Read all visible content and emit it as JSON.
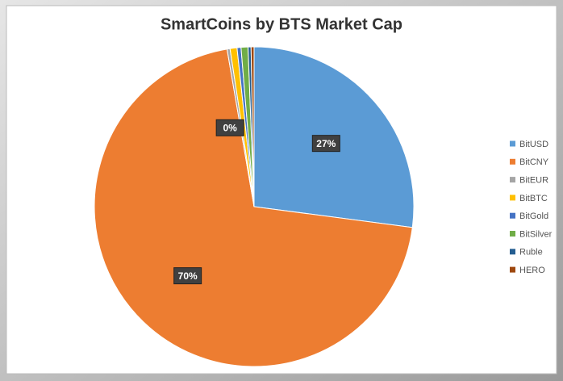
{
  "chart_data": {
    "type": "pie",
    "title": "SmartCoins by BTS Market Cap",
    "categories": [
      "BitUSD",
      "BitCNY",
      "BitEUR",
      "BitBTC",
      "BitGold",
      "BitSilver",
      "Ruble",
      "HERO"
    ],
    "values": [
      27,
      70,
      0.3,
      0.7,
      0.4,
      0.7,
      0.3,
      0.3
    ],
    "value_labels": [
      "27%",
      "70%",
      "0%",
      null,
      null,
      null,
      null,
      null
    ],
    "colors": [
      "#5b9bd5",
      "#ed7d31",
      "#a5a5a5",
      "#ffc000",
      "#4472c4",
      "#70ad47",
      "#255e91",
      "#9e480e"
    ],
    "legend": "right"
  }
}
